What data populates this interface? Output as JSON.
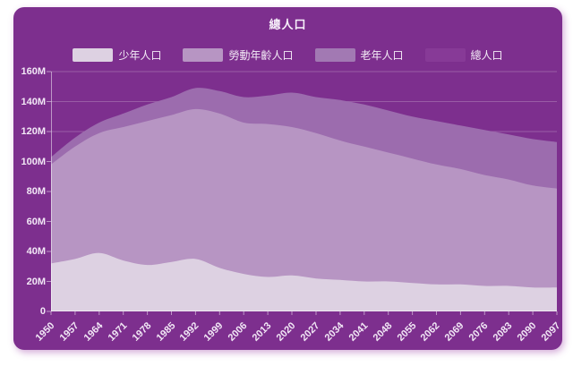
{
  "chart": {
    "title": "總人口",
    "legend": [
      {
        "label": "少年人口",
        "color": "#ddd1e2"
      },
      {
        "label": "勞動年齡人口",
        "color": "#b795c3"
      },
      {
        "label": "老年人口",
        "color": "#a279b3"
      },
      {
        "label": "總人口",
        "color": "#873a97"
      }
    ]
  },
  "chart_data": {
    "type": "area",
    "stacked": true,
    "smooth": true,
    "title": "總人口",
    "xlabel": "",
    "ylabel": "",
    "ylim": [
      0,
      160
    ],
    "y_tick_step": 20,
    "y_ticks": [
      "0",
      "20M",
      "40M",
      "60M",
      "80M",
      "100M",
      "120M",
      "140M",
      "160M"
    ],
    "x_tick_rotation": 45,
    "grid": true,
    "legend_position": "top",
    "categories": [
      1950,
      1957,
      1964,
      1971,
      1978,
      1985,
      1992,
      1999,
      2006,
      2013,
      2020,
      2027,
      2034,
      2041,
      2048,
      2055,
      2062,
      2069,
      2076,
      2083,
      2090,
      2097
    ],
    "series": [
      {
        "name": "少年人口",
        "color": "#ddd1e2",
        "unit": "M",
        "values": [
          32,
          35,
          39,
          34,
          31,
          33,
          35,
          29,
          25,
          23,
          24,
          22,
          21,
          20,
          20,
          19,
          18,
          18,
          17,
          17,
          16,
          16
        ]
      },
      {
        "name": "勞動年齡人口",
        "color": "#b795c3",
        "unit": "M",
        "values": [
          66,
          75,
          80,
          89,
          96,
          98,
          100,
          103,
          101,
          102,
          99,
          97,
          93,
          90,
          86,
          83,
          80,
          77,
          74,
          71,
          68,
          66
        ]
      },
      {
        "name": "老年人口",
        "color": "#9c6cae",
        "unit": "M",
        "values": [
          5,
          6,
          7,
          9,
          11,
          12,
          14,
          15,
          17,
          19,
          23,
          24,
          27,
          28,
          28,
          28,
          29,
          29,
          30,
          30,
          31,
          31
        ]
      },
      {
        "name": "總人口",
        "role": "total",
        "color": "#873a97",
        "unit": "M",
        "values": [
          103,
          116,
          126,
          132,
          138,
          143,
          149,
          147,
          143,
          144,
          146,
          143,
          141,
          138,
          134,
          130,
          127,
          124,
          121,
          118,
          115,
          113
        ]
      }
    ]
  },
  "colors": {
    "page_background": "#ffffff",
    "card_background": "#7d2f8e",
    "text": "#f4ecf7",
    "gridline": "rgba(255,255,255,0.22)",
    "axis_line": "rgba(255,255,255,0.5)"
  }
}
